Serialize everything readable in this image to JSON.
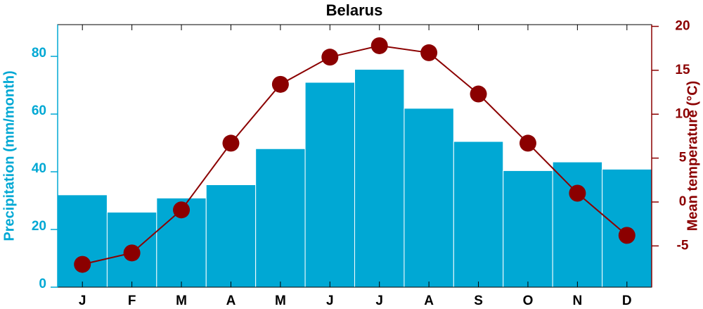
{
  "chart_data": {
    "type": "bar",
    "title": "Belarus",
    "categories": [
      "J",
      "F",
      "M",
      "A",
      "M",
      "J",
      "J",
      "A",
      "S",
      "O",
      "N",
      "D"
    ],
    "series": [
      {
        "name": "Precipitation (mm/month)",
        "type": "bar",
        "color": "#00a8d4",
        "values": [
          32,
          26,
          30.9,
          35.5,
          48,
          71,
          75.5,
          62,
          50.5,
          40.4,
          43.4,
          40.9
        ]
      },
      {
        "name": "Mean temperature (°C)",
        "type": "line",
        "axis": "y2",
        "color": "#8b0000",
        "values": [
          -7.1,
          -5.8,
          -0.9,
          6.7,
          13.4,
          16.5,
          17.8,
          17.0,
          12.3,
          6.7,
          1.0,
          -3.8
        ]
      }
    ],
    "ylim": [
      0,
      91
    ],
    "yticks": [
      0,
      20,
      40,
      60,
      80
    ],
    "y2lim": [
      -9.7,
      20.2
    ],
    "y2ticks": [
      -5,
      0,
      5,
      10,
      15,
      20
    ]
  }
}
